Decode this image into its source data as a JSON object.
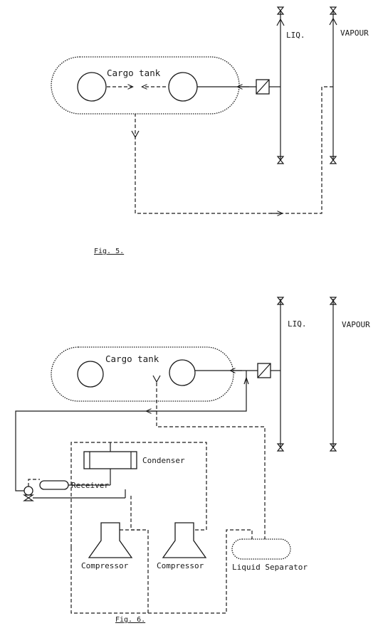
{
  "fig5": {
    "caption": "Fig. 5.",
    "tank_label": "Cargo tank",
    "liq_label": "LIQ.",
    "vapour_label": "VAPOUR"
  },
  "fig6": {
    "caption": "Fig. 6.",
    "tank_label": "Cargo tank",
    "liq_label": "LIQ.",
    "vapour_label": "VAPOUR",
    "condenser_label": "Condenser",
    "receiver_label": "Receiver",
    "compressor1_label": "Compressor",
    "compressor2_label": "Compressor",
    "separator_label": "Liquid Separator"
  }
}
